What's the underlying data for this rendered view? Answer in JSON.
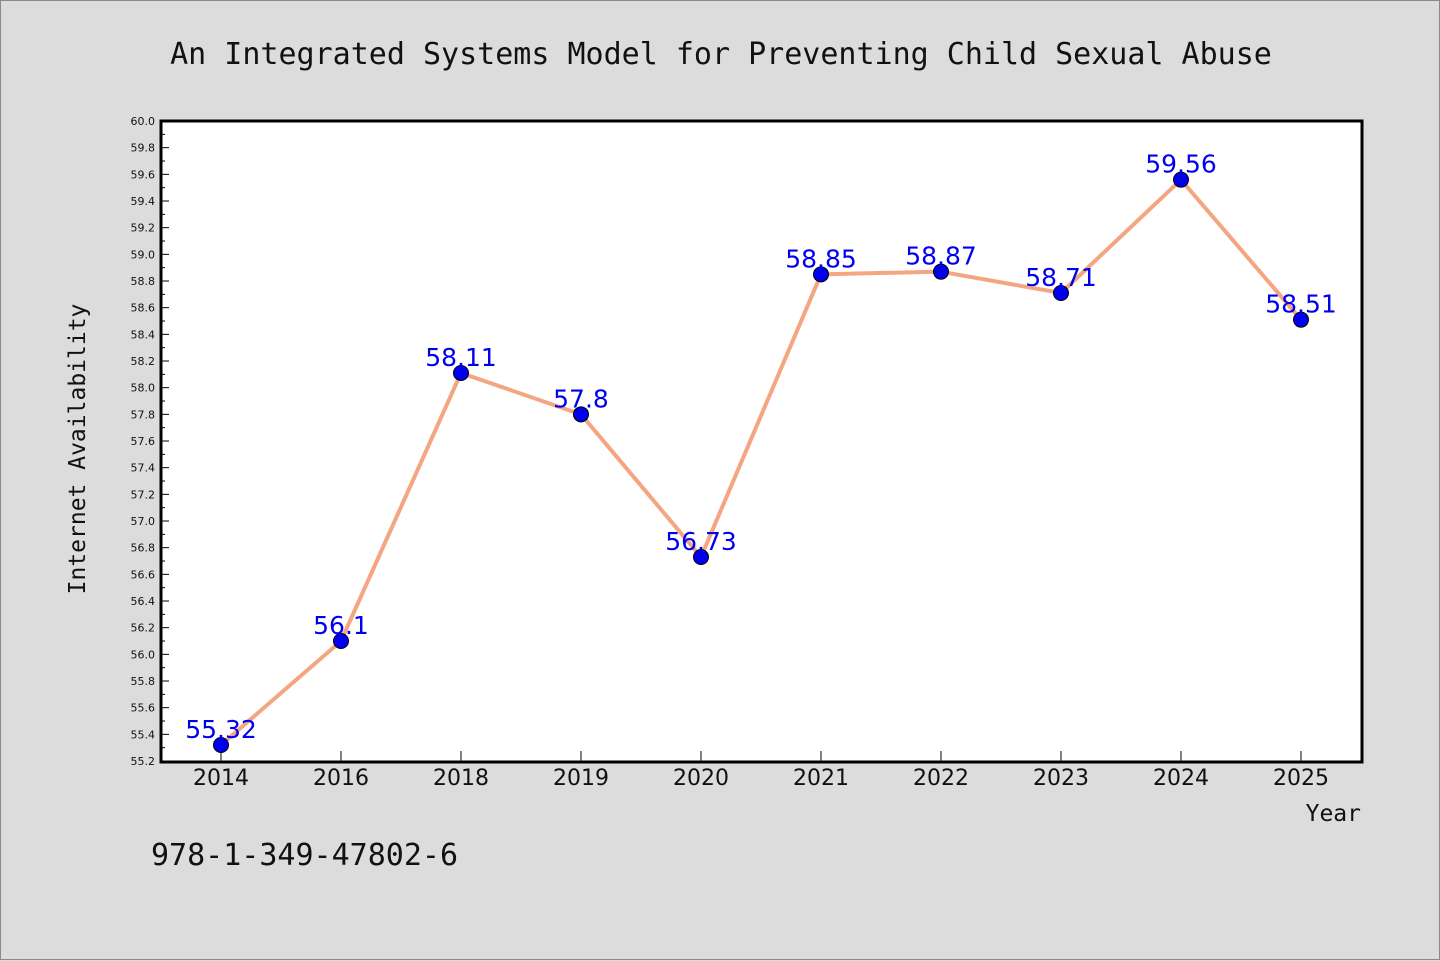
{
  "chart_data": {
    "type": "line",
    "title": "An Integrated Systems Model for Preventing Child Sexual Abuse",
    "xlabel": "Year",
    "ylabel": "Internet Availability",
    "categories": [
      "2014",
      "2016",
      "2018",
      "2019",
      "2020",
      "2021",
      "2022",
      "2023",
      "2024",
      "2025"
    ],
    "values": [
      55.32,
      56.1,
      58.11,
      57.8,
      56.73,
      58.85,
      58.87,
      58.71,
      59.56,
      58.51
    ],
    "data_labels": [
      "55.32",
      "56.1",
      "58.11",
      "57.8",
      "56.73",
      "58.85",
      "58.87",
      "58.71",
      "59.56",
      "58.51"
    ],
    "ylim": [
      55.2,
      60.0
    ],
    "yticks": [
      "55.2",
      "55.4",
      "55.6",
      "55.8",
      "56.0",
      "56.2",
      "56.4",
      "56.6",
      "56.8",
      "57.0",
      "57.2",
      "57.4",
      "57.6",
      "57.8",
      "58.0",
      "58.2",
      "58.4",
      "58.6",
      "58.8",
      "59.0",
      "59.2",
      "59.4",
      "59.6",
      "59.8",
      "60.0"
    ],
    "grid": false,
    "legend": "none",
    "line_color": "#f4a582",
    "marker_color": "#0000ee",
    "label_color": "#0000ee",
    "background_color": "#dcdcdc",
    "plot_background_color": "#ffffff"
  },
  "footer": {
    "isbn": "978-1-349-47802-6"
  }
}
